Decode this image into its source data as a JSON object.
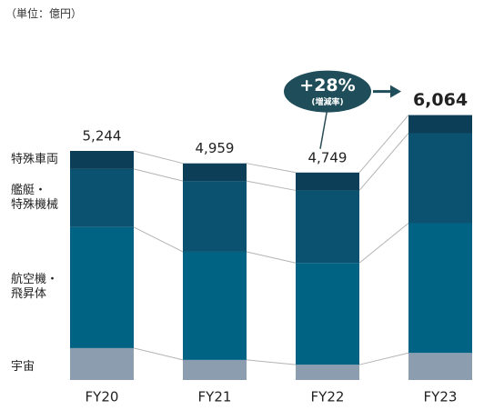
{
  "chart_data": {
    "type": "stacked_bar",
    "unit": "（単位：億円）",
    "categories": [
      "FY20",
      "FY21",
      "FY22",
      "FY23"
    ],
    "series": [
      {
        "name": "宇宙",
        "color": "#8c9db0",
        "values": [
          730,
          460,
          350,
          620
        ]
      },
      {
        "name": "航空機・\n飛昇体",
        "color": "#006384",
        "values": [
          2770,
          2475,
          2330,
          2970
        ]
      },
      {
        "name": "艦艇・\n特殊機械",
        "color": "#0b5170",
        "values": [
          1330,
          1620,
          1660,
          2060
        ]
      },
      {
        "name": "特殊車両",
        "color": "#0c3f57",
        "values": [
          414,
          404,
          409,
          414
        ]
      }
    ],
    "totals": [
      5244,
      4959,
      4749,
      6064
    ],
    "total_labels": [
      "5,244",
      "4,959",
      "4,749",
      "6,064"
    ],
    "annotation": {
      "value": "+28%",
      "sub": "(増減率)"
    }
  }
}
